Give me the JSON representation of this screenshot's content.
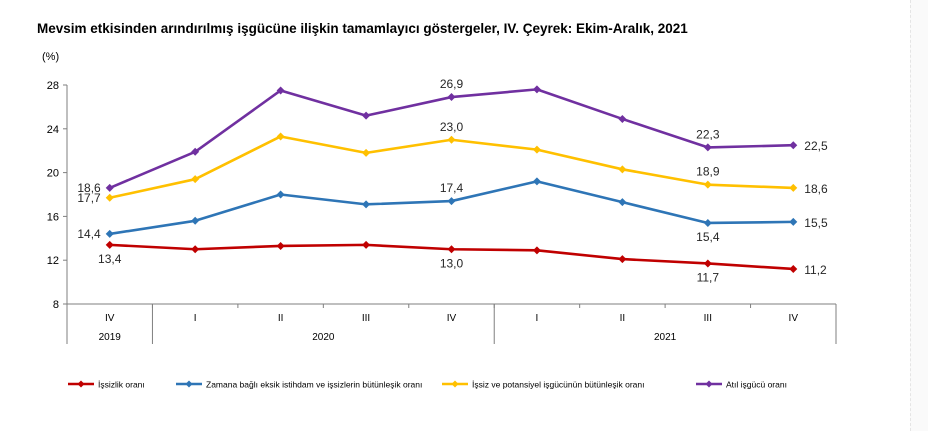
{
  "title": "Mevsim etkisinden arındırılmış işgücüne ilişkin tamamlayıcı göstergeler, IV. Çeyrek: Ekim-Aralık, 2021",
  "chart_data": {
    "type": "line",
    "title": "Mevsim etkisinden arındırılmış işgücüne ilişkin tamamlayıcı göstergeler, IV. Çeyrek: Ekim-Aralık, 2021",
    "ylabel": "(%)",
    "xlabel": "",
    "ylim": [
      8,
      28
    ],
    "yticks": [
      8,
      12,
      16,
      20,
      24,
      28
    ],
    "grid": false,
    "legend_position": "bottom",
    "categories": [
      "IV",
      "I",
      "II",
      "III",
      "IV",
      "I",
      "II",
      "III",
      "IV"
    ],
    "year_groups": [
      {
        "label": "2019",
        "count": 1
      },
      {
        "label": "2020",
        "count": 4
      },
      {
        "label": "2021",
        "count": 4
      }
    ],
    "series": [
      {
        "name": "İşsizlik oranı",
        "color": "#c00000",
        "values": [
          13.4,
          13.0,
          13.3,
          13.4,
          13.0,
          12.9,
          12.1,
          11.7,
          11.2
        ],
        "labels": [
          "13,4",
          null,
          null,
          null,
          "13,0",
          null,
          null,
          "11,7",
          "11,2"
        ],
        "label_pos": [
          "below",
          null,
          null,
          null,
          "below",
          null,
          null,
          "below",
          "right"
        ]
      },
      {
        "name": "Zamana bağlı eksik istihdam ve işsizlerin bütünleşik oranı",
        "color": "#2e75b6",
        "values": [
          14.4,
          15.6,
          18.0,
          17.1,
          17.4,
          19.2,
          17.3,
          15.4,
          15.5
        ],
        "labels": [
          "14,4",
          null,
          null,
          null,
          "17,4",
          null,
          null,
          "15,4",
          "15,5"
        ],
        "label_pos": [
          "left",
          null,
          null,
          null,
          "above",
          null,
          null,
          "below",
          "right"
        ]
      },
      {
        "name": "İşsiz ve potansiyel işgücünün bütünleşik oranı",
        "color": "#ffc000",
        "values": [
          17.7,
          19.4,
          23.3,
          21.8,
          23.0,
          22.1,
          20.3,
          18.9,
          18.6
        ],
        "labels": [
          "17,7",
          null,
          null,
          null,
          "23,0",
          null,
          null,
          "18,9",
          "18,6"
        ],
        "label_pos": [
          "left",
          null,
          null,
          null,
          "above",
          null,
          null,
          "above",
          "right"
        ]
      },
      {
        "name": "Atıl işgücü oranı",
        "color": "#7030a0",
        "values": [
          18.6,
          21.9,
          27.5,
          25.2,
          26.9,
          27.6,
          24.9,
          22.3,
          22.5
        ],
        "labels": [
          "18,6",
          null,
          null,
          null,
          "26,9",
          null,
          null,
          "22,3",
          "22,5"
        ],
        "label_pos": [
          "left",
          null,
          null,
          null,
          "above",
          null,
          null,
          "above",
          "right"
        ]
      }
    ]
  }
}
